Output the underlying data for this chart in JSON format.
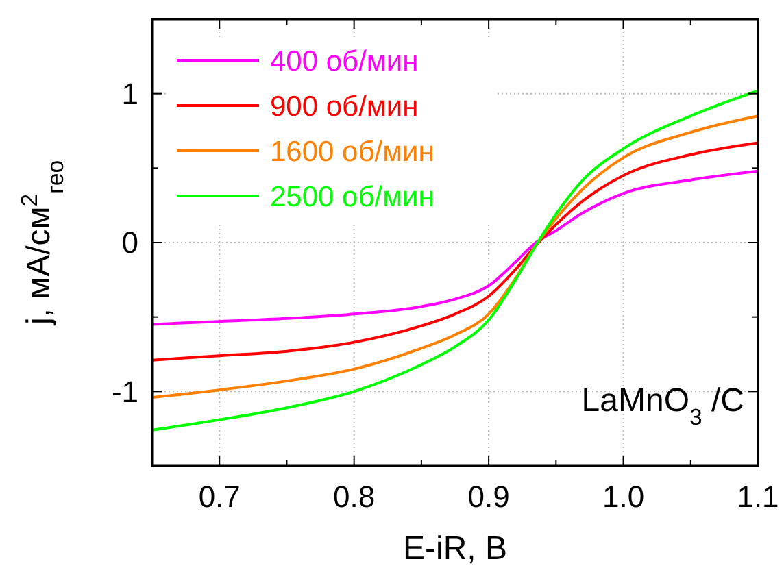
{
  "chart_data": {
    "type": "line",
    "xlabel": "E-iR, В",
    "ylabel": "j, мА/см$^{2}$$_{гео}$",
    "xlim": [
      0.65,
      1.1
    ],
    "ylim": [
      -1.5,
      1.5
    ],
    "xticks": [
      {
        "value": 0.7,
        "label": "0.7"
      },
      {
        "value": 0.75,
        "label": null
      },
      {
        "value": 0.8,
        "label": "0.8"
      },
      {
        "value": 0.85,
        "label": null
      },
      {
        "value": 0.9,
        "label": "0.9"
      },
      {
        "value": 0.95,
        "label": null
      },
      {
        "value": 1,
        "label": "1.0"
      },
      {
        "value": 1.05,
        "label": null
      },
      {
        "value": 1.1,
        "label": "1.1"
      }
    ],
    "yticks": [
      {
        "value": -1,
        "label": "-1"
      },
      {
        "value": -0.5,
        "label": null
      },
      0,
      {
        "value": 0.5,
        "label": null
      },
      1
    ],
    "grid": true,
    "legend": "top left",
    "marker": "none",
    "line_style": "solid",
    "annotations": [
      "LaMnO$_{3}$ /C"
    ],
    "x": [
      0.65,
      0.7,
      0.75,
      0.8,
      0.85,
      0.875,
      0.9,
      0.92,
      0.935,
      0.95,
      0.97,
      1.0,
      1.05,
      1.1
    ],
    "series": [
      {
        "name": "400 об/мин",
        "color": "#ff00ff",
        "values": [
          -0.55,
          -0.53,
          -0.51,
          -0.48,
          -0.43,
          -0.38,
          -0.29,
          -0.13,
          0,
          0.08,
          0.2,
          0.33,
          0.42,
          0.48
        ]
      },
      {
        "name": "900 об/мин",
        "color": "#ff0000",
        "values": [
          -0.79,
          -0.76,
          -0.73,
          -0.67,
          -0.56,
          -0.48,
          -0.36,
          -0.18,
          -0.02,
          0.12,
          0.28,
          0.45,
          0.59,
          0.67
        ]
      },
      {
        "name": "1600 об/мин",
        "color": "#ff8000",
        "values": [
          -1.04,
          -0.99,
          -0.93,
          -0.85,
          -0.71,
          -0.62,
          -0.48,
          -0.24,
          -0.02,
          0.16,
          0.36,
          0.57,
          0.74,
          0.85
        ]
      },
      {
        "name": "2500 об/мин",
        "color": "#00ff00",
        "values": [
          -1.26,
          -1.19,
          -1.11,
          -1.0,
          -0.82,
          -0.7,
          -0.52,
          -0.25,
          -0.02,
          0.19,
          0.42,
          0.63,
          0.85,
          1.02
        ]
      }
    ]
  }
}
